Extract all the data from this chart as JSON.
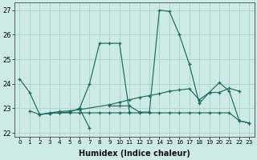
{
  "xlabel": "Humidex (Indice chaleur)",
  "xlim": [
    -0.5,
    23.5
  ],
  "ylim": [
    21.85,
    27.3
  ],
  "yticks": [
    22,
    23,
    24,
    25,
    26,
    27
  ],
  "xticks": [
    0,
    1,
    2,
    3,
    4,
    5,
    6,
    7,
    8,
    9,
    10,
    11,
    12,
    13,
    14,
    15,
    16,
    17,
    18,
    19,
    20,
    21,
    22,
    23
  ],
  "background_color": "#ceeae7",
  "grid_color": "#aed4d0",
  "line_color": "#1d6b5e",
  "series": [
    {
      "x": [
        0,
        1,
        2,
        3,
        4,
        5,
        6,
        7,
        8,
        9,
        10,
        11,
        12,
        13,
        14,
        15,
        16,
        17,
        18,
        19,
        20,
        21,
        22,
        23
      ],
      "y": [
        24.2,
        23.65,
        22.75,
        22.8,
        22.82,
        22.82,
        22.82,
        22.82,
        22.82,
        22.82,
        22.82,
        22.82,
        22.82,
        22.82,
        22.82,
        22.82,
        22.82,
        22.82,
        22.82,
        22.82,
        22.82,
        22.82,
        22.5,
        22.4
      ]
    },
    {
      "x": [
        1,
        2,
        3,
        4,
        5,
        6,
        7
      ],
      "y": [
        22.9,
        22.75,
        22.8,
        22.82,
        22.85,
        23.0,
        22.2
      ]
    },
    {
      "x": [
        6,
        7,
        8,
        9,
        10,
        11
      ],
      "y": [
        23.0,
        24.0,
        25.65,
        25.65,
        25.65,
        22.85
      ]
    },
    {
      "x": [
        9,
        10,
        11,
        12,
        13,
        14,
        15,
        16,
        17,
        18,
        19,
        20,
        21,
        22,
        23
      ],
      "y": [
        23.1,
        23.1,
        23.1,
        22.85,
        22.85,
        27.0,
        26.95,
        26.0,
        24.8,
        23.2,
        23.65,
        24.05,
        23.7,
        22.5,
        22.4
      ]
    },
    {
      "x": [
        2,
        3,
        4,
        5,
        6,
        9,
        10,
        11,
        12,
        13,
        14,
        15,
        16,
        17,
        18,
        19,
        20,
        21,
        22
      ],
      "y": [
        22.75,
        22.82,
        22.87,
        22.9,
        22.95,
        23.15,
        23.25,
        23.35,
        23.45,
        23.52,
        23.6,
        23.7,
        23.75,
        23.8,
        23.35,
        23.65,
        23.65,
        23.82,
        23.7
      ]
    }
  ]
}
